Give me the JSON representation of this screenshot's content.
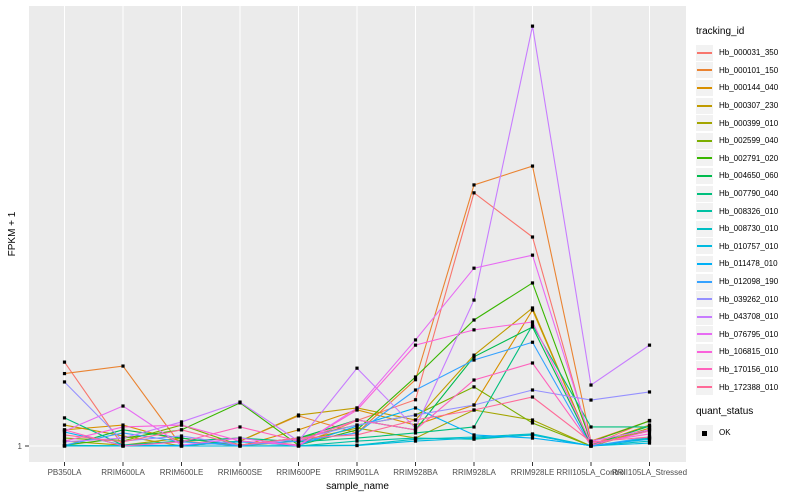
{
  "figure": {
    "bg": "#ffffff",
    "panel_bg": "#ebebeb",
    "grid_color": "#ffffff",
    "tick_color": "#333333",
    "tick_label_color": "#4d4d4d",
    "legend_key_bg": "#f2f2f2",
    "point_color": "#000000"
  },
  "chart_data": {
    "type": "line",
    "title": "",
    "xlabel": "sample_name",
    "ylabel": "FPKM + 1",
    "y_scale": "log10",
    "y_tick_labels": [
      "1"
    ],
    "ylim": [
      0.75,
      25000
    ],
    "grid": "vertical-major-only",
    "legend_position": "right",
    "legend_title": "tracking_id",
    "point_marker": "black-square",
    "categories": [
      "PB350LA",
      "RRIM600LA",
      "RRIM600LE",
      "RRIM600SE",
      "RRIM600PE",
      "RRIM901LA",
      "RRIM928BA",
      "RRIM928LA",
      "RRIM928LE",
      "RRII105LA_Control",
      "RRII105LA_Stressed"
    ],
    "series": [
      {
        "name": "Hb_000031_350",
        "color": "#F8766D",
        "values": [
          6.9,
          1.0,
          1.12,
          1.2,
          1.02,
          1.8,
          2.9,
          340,
          123,
          1.02,
          1.8
        ]
      },
      {
        "name": "Hb_000101_150",
        "color": "#EA8331",
        "values": [
          5.3,
          6.3,
          1.0,
          1.12,
          2.0,
          1.35,
          4.6,
          408,
          630,
          1.12,
          1.78
        ]
      },
      {
        "name": "Hb_000144_040",
        "color": "#D89000",
        "values": [
          1.45,
          1.62,
          1.12,
          1.0,
          1.45,
          2.3,
          1.62,
          2.57,
          22.9,
          1.02,
          1.62
        ]
      },
      {
        "name": "Hb_000307_230",
        "color": "#C09B00",
        "values": [
          1.62,
          1.26,
          1.0,
          1.12,
          2.04,
          2.4,
          1.82,
          8.1,
          24.0,
          1.0,
          1.51
        ]
      },
      {
        "name": "Hb_000399_010",
        "color": "#A3A500",
        "values": [
          1.12,
          1.02,
          1.2,
          1.0,
          1.12,
          1.51,
          1.2,
          2.29,
          1.82,
          1.0,
          1.2
        ]
      },
      {
        "name": "Hb_002599_040",
        "color": "#7CAE00",
        "values": [
          1.2,
          1.12,
          1.62,
          1.02,
          1.2,
          1.62,
          2.04,
          3.9,
          1.7,
          1.0,
          1.45
        ]
      },
      {
        "name": "Hb_002791_020",
        "color": "#39B600",
        "values": [
          1.02,
          1.2,
          1.45,
          2.7,
          1.02,
          1.45,
          4.9,
          18.2,
          42.7,
          1.1,
          1.78
        ]
      },
      {
        "name": "Hb_004650_060",
        "color": "#00BB4E",
        "values": [
          1.0,
          1.45,
          1.2,
          1.02,
          1.2,
          1.82,
          1.45,
          7.8,
          15.5,
          1.02,
          1.58
        ]
      },
      {
        "name": "Hb_007790_040",
        "color": "#00BF7D",
        "values": [
          1.91,
          1.02,
          1.12,
          1.2,
          1.1,
          1.2,
          1.35,
          1.55,
          16.2,
          1.55,
          1.55
        ]
      },
      {
        "name": "Hb_008326_010",
        "color": "#00C1A3",
        "values": [
          1.02,
          1.0,
          1.02,
          1.12,
          1.0,
          1.12,
          1.2,
          1.17,
          1.29,
          1.0,
          1.2
        ]
      },
      {
        "name": "Hb_008730_010",
        "color": "#00BFC4",
        "values": [
          1.0,
          1.01,
          1.0,
          1.0,
          1.01,
          1.02,
          1.17,
          1.23,
          1.32,
          1.0,
          1.12
        ]
      },
      {
        "name": "Hb_010757_010",
        "color": "#00BAE0",
        "values": [
          1.0,
          1.0,
          1.0,
          1.0,
          1.0,
          1.01,
          1.12,
          1.2,
          1.29,
          1.0,
          1.07
        ]
      },
      {
        "name": "Hb_011478_010",
        "color": "#00B0F6",
        "values": [
          1.38,
          1.02,
          1.01,
          1.1,
          1.02,
          1.58,
          2.4,
          1.29,
          1.2,
          1.01,
          1.17
        ]
      },
      {
        "name": "Hb_012098_190",
        "color": "#35A2FF",
        "values": [
          1.02,
          1.35,
          1.1,
          1.01,
          1.12,
          1.35,
          3.63,
          7.24,
          10.9,
          1.0,
          1.23
        ]
      },
      {
        "name": "Hb_039262_010",
        "color": "#9590FF",
        "values": [
          4.37,
          1.12,
          1.26,
          1.02,
          1.17,
          1.62,
          2.04,
          2.57,
          3.63,
          2.88,
          3.47
        ]
      },
      {
        "name": "Hb_043708_010",
        "color": "#C77CFF",
        "values": [
          1.1,
          1.2,
          1.74,
          2.75,
          1.12,
          6.0,
          1.51,
          28.8,
          15800,
          4.07,
          10.2
        ]
      },
      {
        "name": "Hb_076795_010",
        "color": "#E76BF3",
        "values": [
          1.41,
          2.51,
          1.02,
          1.2,
          1.0,
          2.4,
          11.5,
          60.0,
          81.0,
          1.12,
          1.45
        ]
      },
      {
        "name": "Hb_106815_010",
        "color": "#FA62DB",
        "values": [
          1.12,
          1.55,
          1.62,
          1.12,
          1.02,
          2.29,
          10.2,
          14.5,
          17.4,
          1.07,
          1.32
        ]
      },
      {
        "name": "Hb_170156_010",
        "color": "#FF62BC",
        "values": [
          1.45,
          1.0,
          1.1,
          1.55,
          1.12,
          1.82,
          1.45,
          4.57,
          6.76,
          1.02,
          1.41
        ]
      },
      {
        "name": "Hb_172388_010",
        "color": "#FF6A98",
        "values": [
          1.29,
          1.1,
          1.45,
          1.02,
          1.2,
          1.29,
          1.82,
          2.29,
          3.09,
          1.1,
          1.23
        ]
      }
    ],
    "quant_status": {
      "title": "quant_status",
      "items": [
        {
          "label": "OK",
          "marker": "black-square"
        }
      ]
    }
  }
}
